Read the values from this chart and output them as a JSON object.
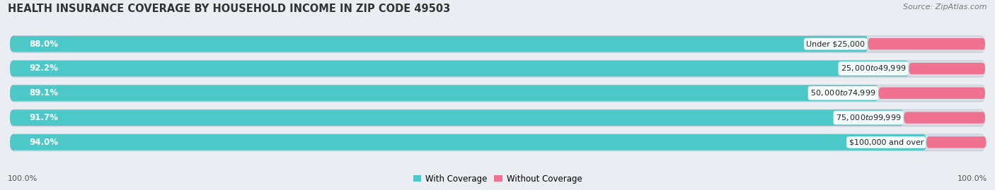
{
  "title": "HEALTH INSURANCE COVERAGE BY HOUSEHOLD INCOME IN ZIP CODE 49503",
  "source": "Source: ZipAtlas.com",
  "categories": [
    "Under $25,000",
    "$25,000 to $49,999",
    "$50,000 to $74,999",
    "$75,000 to $99,999",
    "$100,000 and over"
  ],
  "with_coverage": [
    88.0,
    92.2,
    89.1,
    91.7,
    94.0
  ],
  "without_coverage": [
    12.0,
    7.8,
    10.9,
    8.3,
    6.1
  ],
  "color_with": "#4DC8C8",
  "color_without": "#F07090",
  "color_without_light": "#F4A0B8",
  "bg_color": "#EAEEF2",
  "bar_bg_color": "#D8DCE4",
  "bar_bg_shadow": "#C8CCD4",
  "title_fontsize": 10.5,
  "source_fontsize": 8,
  "label_fontsize": 8.5,
  "legend_fontsize": 8.5,
  "bar_height": 0.65,
  "legend_label_with": "With Coverage",
  "legend_label_without": "Without Coverage"
}
